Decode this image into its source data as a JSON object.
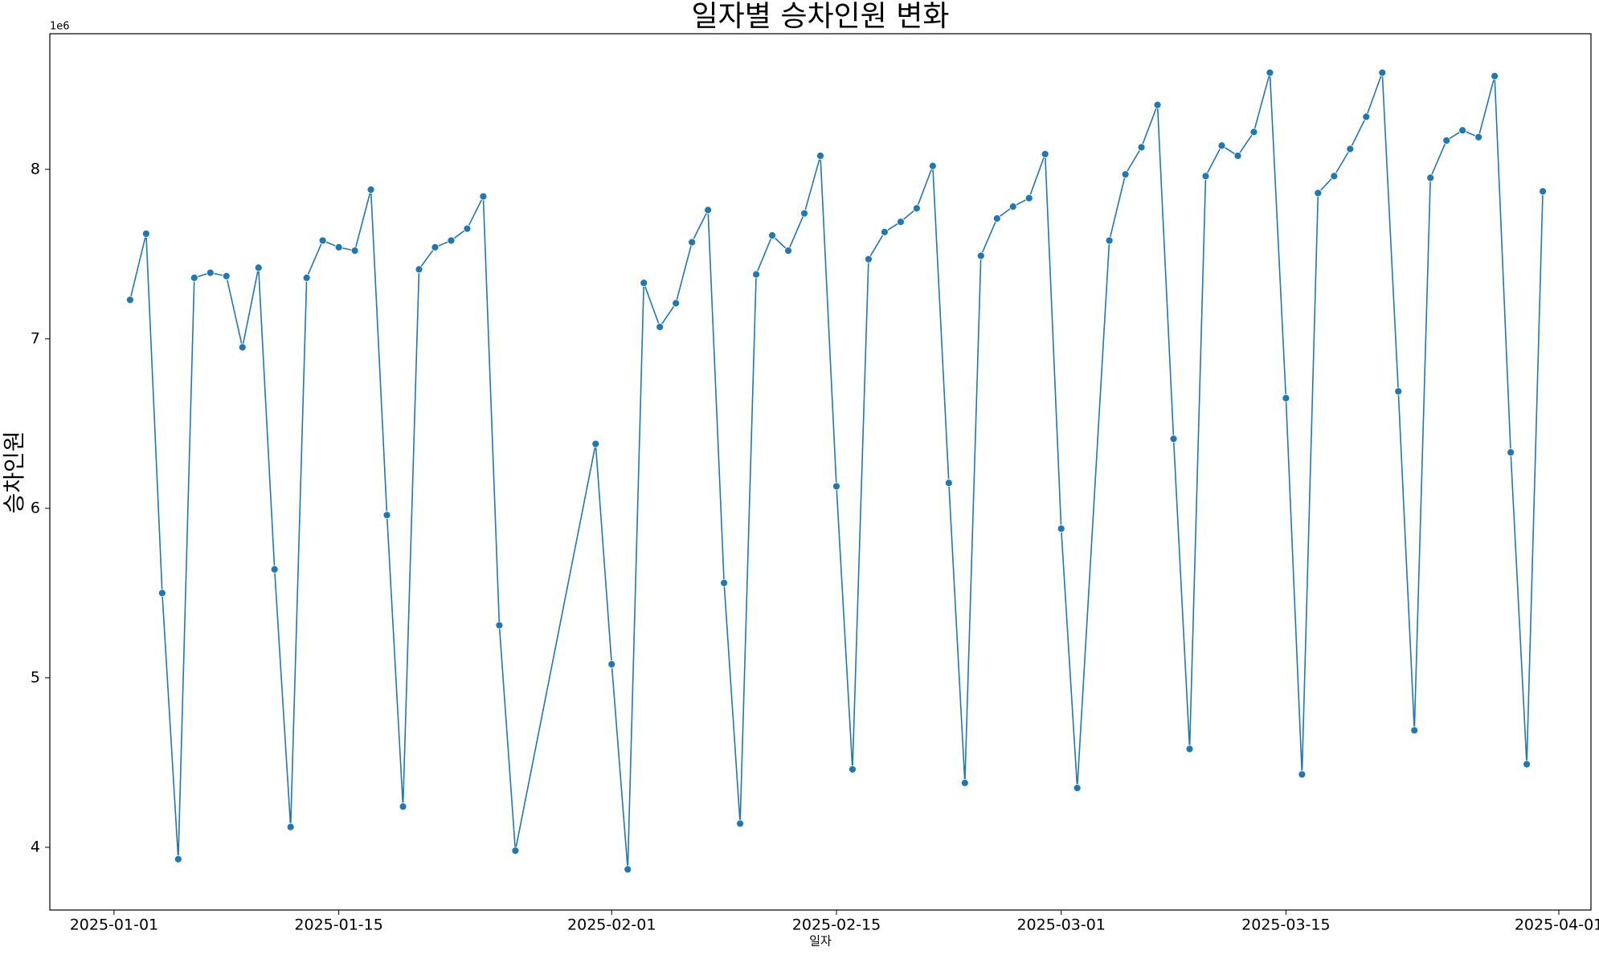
{
  "chart_data": {
    "type": "line",
    "title": "일자별 승차인원 변화",
    "x_label": "일자",
    "y_label": "승차인원",
    "y_offset_label": "1e6",
    "x": [
      "2025-01-02",
      "2025-01-03",
      "2025-01-04",
      "2025-01-05",
      "2025-01-06",
      "2025-01-07",
      "2025-01-08",
      "2025-01-09",
      "2025-01-10",
      "2025-01-11",
      "2025-01-12",
      "2025-01-13",
      "2025-01-14",
      "2025-01-15",
      "2025-01-16",
      "2025-01-17",
      "2025-01-18",
      "2025-01-19",
      "2025-01-20",
      "2025-01-21",
      "2025-01-22",
      "2025-01-23",
      "2025-01-24",
      "2025-01-25",
      "2025-01-26",
      "2025-01-31",
      "2025-02-01",
      "2025-02-02",
      "2025-02-03",
      "2025-02-04",
      "2025-02-05",
      "2025-02-06",
      "2025-02-07",
      "2025-02-08",
      "2025-02-09",
      "2025-02-10",
      "2025-02-11",
      "2025-02-12",
      "2025-02-13",
      "2025-02-14",
      "2025-02-15",
      "2025-02-16",
      "2025-02-17",
      "2025-02-18",
      "2025-02-19",
      "2025-02-20",
      "2025-02-21",
      "2025-02-22",
      "2025-02-23",
      "2025-02-24",
      "2025-02-25",
      "2025-02-26",
      "2025-02-27",
      "2025-02-28",
      "2025-03-01",
      "2025-03-02",
      "2025-03-04",
      "2025-03-05",
      "2025-03-06",
      "2025-03-07",
      "2025-03-08",
      "2025-03-09",
      "2025-03-10",
      "2025-03-11",
      "2025-03-12",
      "2025-03-13",
      "2025-03-14",
      "2025-03-15",
      "2025-03-16",
      "2025-03-17",
      "2025-03-18",
      "2025-03-19",
      "2025-03-20",
      "2025-03-21",
      "2025-03-22",
      "2025-03-23",
      "2025-03-24",
      "2025-03-25",
      "2025-03-26",
      "2025-03-27",
      "2025-03-28",
      "2025-03-29",
      "2025-03-30",
      "2025-03-31"
    ],
    "series": [
      {
        "color": "#1f77b4",
        "values": [
          7.23,
          7.62,
          5.5,
          3.93,
          7.36,
          7.39,
          7.37,
          6.95,
          7.42,
          5.64,
          4.12,
          7.36,
          7.58,
          7.54,
          7.52,
          7.88,
          5.96,
          4.24,
          7.41,
          7.54,
          7.58,
          7.65,
          7.84,
          5.31,
          3.98,
          6.38,
          5.08,
          3.87,
          7.33,
          7.07,
          7.21,
          7.57,
          7.76,
          5.56,
          4.14,
          7.38,
          7.61,
          7.52,
          7.74,
          8.08,
          6.13,
          4.46,
          7.47,
          7.63,
          7.69,
          7.77,
          8.02,
          6.15,
          4.38,
          7.49,
          7.71,
          7.78,
          7.83,
          8.09,
          5.88,
          4.35,
          7.58,
          7.97,
          8.13,
          8.38,
          6.41,
          4.58,
          7.96,
          8.14,
          8.08,
          8.22,
          8.57,
          6.65,
          4.43,
          7.86,
          7.96,
          8.12,
          8.31,
          8.57,
          6.69,
          4.69,
          7.95,
          8.17,
          8.23,
          8.19,
          8.55,
          6.33,
          4.49,
          7.87
        ]
      }
    ],
    "xlim": [
      "2024-12-28",
      "2025-04-03"
    ],
    "xticks": [
      "2025-01-01",
      "2025-01-15",
      "2025-02-01",
      "2025-02-15",
      "2025-03-01",
      "2025-03-15",
      "2025-04-01"
    ],
    "ylim": [
      3.63,
      8.8
    ],
    "yticks": [
      4,
      5,
      6,
      7,
      8
    ],
    "grid": false,
    "markers": true
  }
}
